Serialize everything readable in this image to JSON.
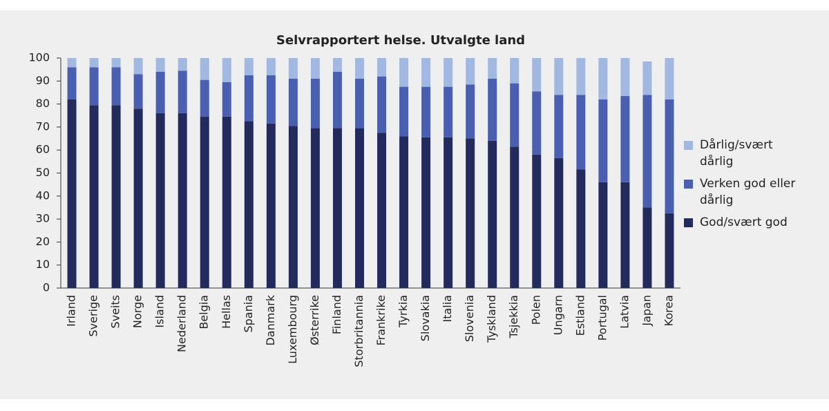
{
  "chart_data": {
    "type": "stacked_bar",
    "title": "Selvrapportert helse. Utvalgte land",
    "categories": [
      "Irland",
      "Sverige",
      "Sveits",
      "Norge",
      "Island",
      "Nederland",
      "Belgia",
      "Hellas",
      "Spania",
      "Danmark",
      "Luxembourg",
      "Østerrike",
      "Finland",
      "Storbritannia",
      "Frankrike",
      "Tyrkia",
      "Slovakia",
      "Italia",
      "Slovenia",
      "Tyskland",
      "Tsjekkia",
      "Polen",
      "Ungarn",
      "Estland",
      "Portugal",
      "Latvia",
      "Japan",
      "Korea"
    ],
    "series": [
      {
        "name": "God/svært god",
        "color": "#232b5c",
        "values": [
          82,
          79.5,
          79.5,
          78,
          76,
          76,
          74.5,
          74.5,
          72.5,
          71.5,
          70.5,
          69.5,
          69.5,
          69.5,
          67.5,
          66,
          65.5,
          65.5,
          65,
          64,
          61.5,
          58,
          56.5,
          51.5,
          46,
          46,
          35,
          32.5
        ]
      },
      {
        "name": "Verken god eller dårlig",
        "color": "#4a5fb0",
        "values": [
          14,
          16.5,
          16.5,
          15,
          18,
          18.5,
          16,
          15,
          20,
          21,
          20.5,
          21.5,
          24.5,
          21.5,
          24.5,
          21.5,
          22,
          22,
          23.5,
          27,
          27.5,
          27.5,
          27.5,
          32.5,
          36,
          37.5,
          49,
          49.5
        ]
      },
      {
        "name": "Dårlig/svært dårlig",
        "color": "#a3b8e0",
        "values": [
          4,
          4,
          4,
          7,
          6,
          5.5,
          9.5,
          10.5,
          7.5,
          7.5,
          9,
          9,
          6,
          9,
          8,
          12.5,
          12.5,
          12.5,
          11.5,
          9,
          11,
          14.5,
          16,
          16,
          18,
          16.5,
          14.5,
          18
        ]
      }
    ],
    "ylim": [
      0,
      100
    ],
    "yticks": [
      0,
      10,
      20,
      30,
      40,
      50,
      60,
      70,
      80,
      90,
      100
    ],
    "grid": false
  }
}
